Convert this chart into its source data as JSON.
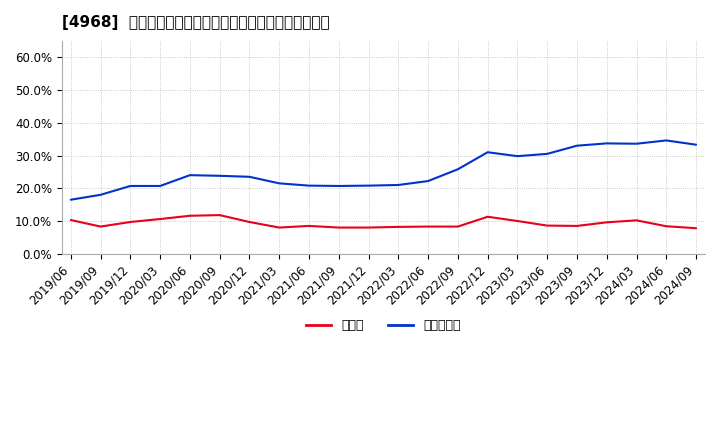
{
  "title": "[4968]  現預金、有利子負債の総資産に対する比率の推移",
  "x_labels": [
    "2019/06",
    "2019/09",
    "2019/12",
    "2020/03",
    "2020/06",
    "2020/09",
    "2020/12",
    "2021/03",
    "2021/06",
    "2021/09",
    "2021/12",
    "2022/03",
    "2022/06",
    "2022/09",
    "2022/12",
    "2023/03",
    "2023/06",
    "2023/09",
    "2023/12",
    "2024/03",
    "2024/06",
    "2024/09"
  ],
  "cash": [
    0.103,
    0.083,
    0.097,
    0.106,
    0.116,
    0.118,
    0.097,
    0.08,
    0.085,
    0.08,
    0.08,
    0.082,
    0.083,
    0.083,
    0.113,
    0.1,
    0.086,
    0.085,
    0.096,
    0.102,
    0.084,
    0.078
  ],
  "debt": [
    0.165,
    0.18,
    0.207,
    0.207,
    0.24,
    0.238,
    0.235,
    0.215,
    0.208,
    0.207,
    0.208,
    0.21,
    0.222,
    0.258,
    0.31,
    0.298,
    0.305,
    0.33,
    0.337,
    0.336,
    0.346,
    0.333
  ],
  "cash_color": "#e8001c",
  "debt_color": "#0033cc",
  "background_color": "#ffffff",
  "grid_color": "#bbbbbb",
  "legend_cash": "現預金",
  "legend_debt": "有利子負債",
  "ylim": [
    0.0,
    0.65
  ],
  "yticks": [
    0.0,
    0.1,
    0.2,
    0.3,
    0.4,
    0.5,
    0.6
  ],
  "ytick_labels": [
    "0.0%",
    "10.0%",
    "20.0%",
    "30.0%",
    "40.0%",
    "50.0%",
    "60.0%"
  ],
  "title_fontsize": 11,
  "tick_fontsize": 8.5,
  "legend_fontsize": 9
}
